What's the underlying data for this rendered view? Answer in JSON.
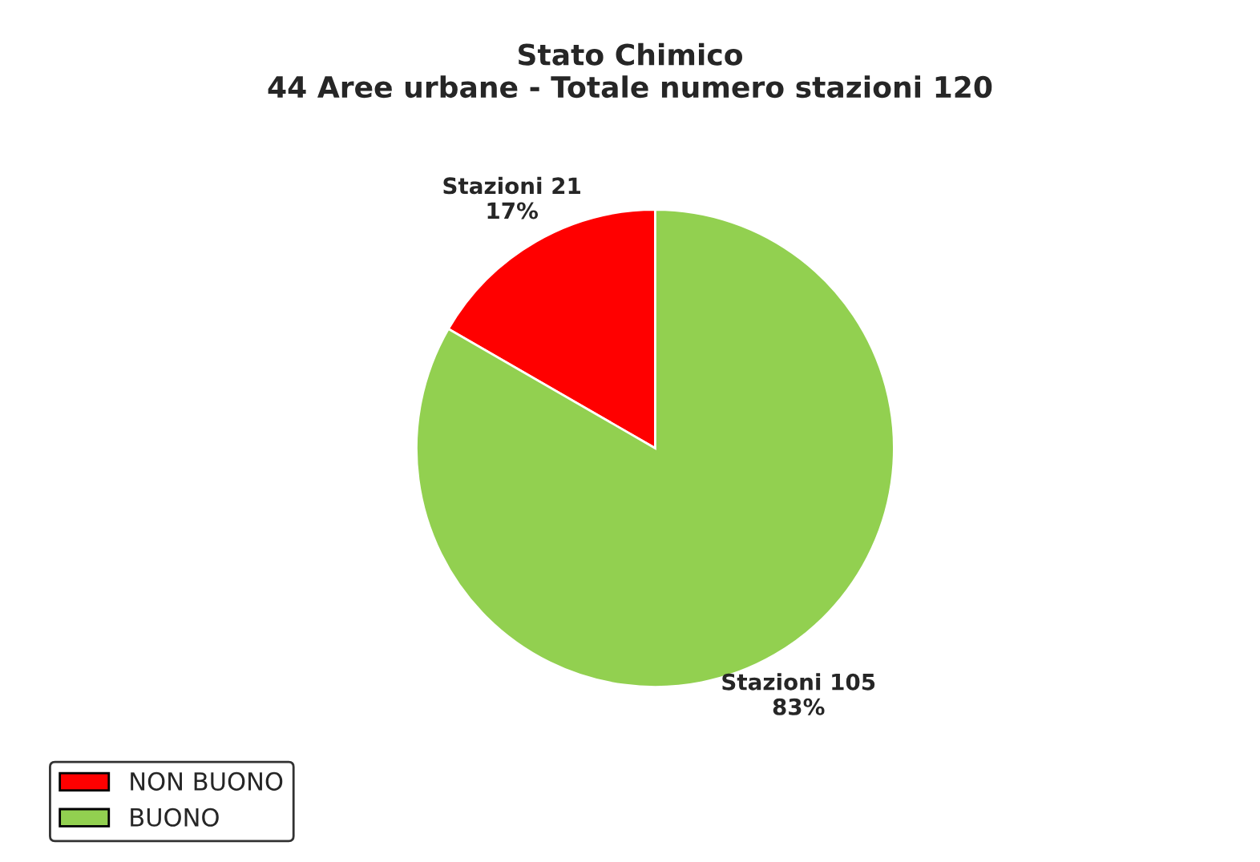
{
  "chart_data": {
    "type": "pie",
    "title": "Stato Chimico\n44 Aree urbane - Totale numero stazioni 120",
    "categories": [
      "NON BUONO",
      "BUONO"
    ],
    "values": [
      21,
      105
    ],
    "colors": [
      "#ff0000",
      "#92d050"
    ],
    "value_labels": [
      "Stazioni 21\n17%",
      "Stazioni 105\n83%"
    ],
    "legend": "bottom left"
  }
}
